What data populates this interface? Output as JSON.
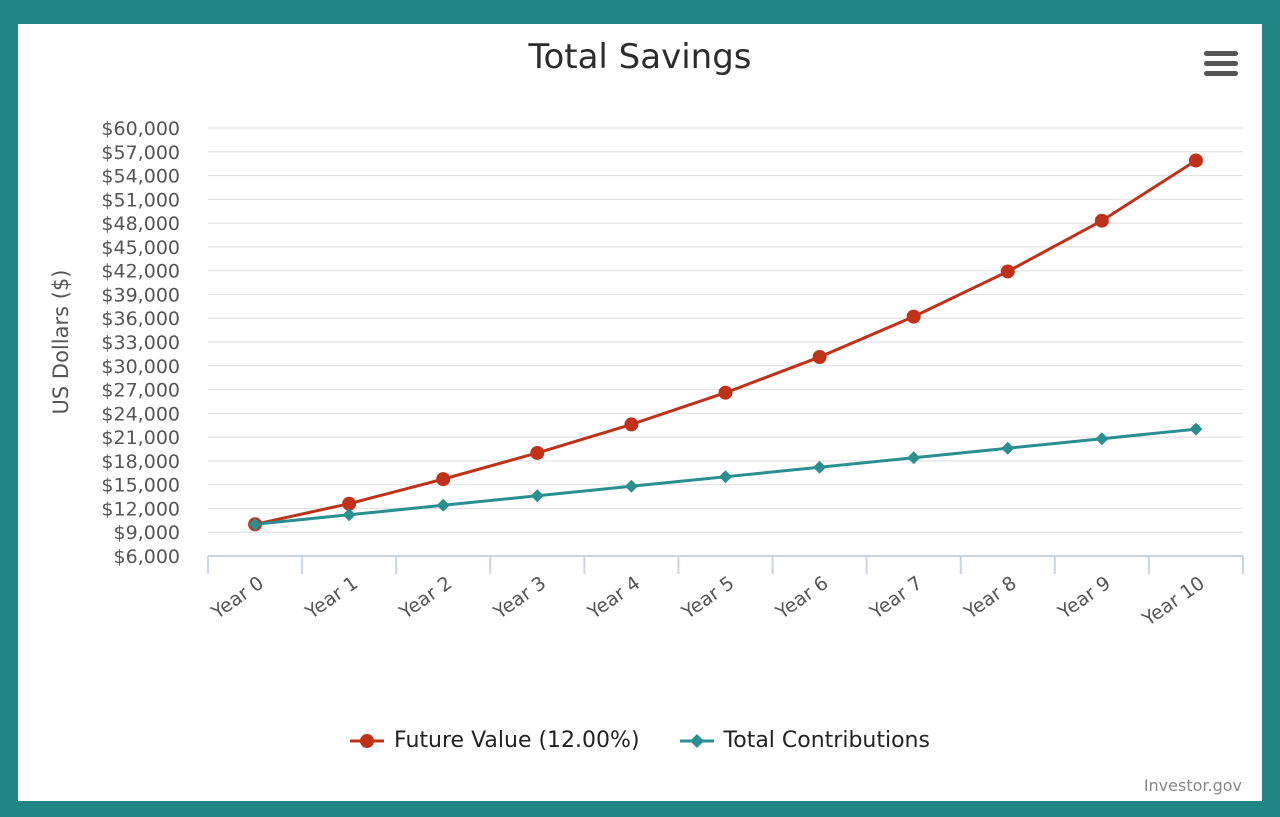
{
  "chart_data": {
    "type": "line",
    "title": "Total Savings",
    "ylabel": "US Dollars ($)",
    "xlabel": "",
    "categories": [
      "Year 0",
      "Year 1",
      "Year 2",
      "Year 3",
      "Year 4",
      "Year 5",
      "Year 6",
      "Year 7",
      "Year 8",
      "Year 9",
      "Year 10"
    ],
    "ylim": [
      6000,
      60000
    ],
    "yticks": [
      "$60,000",
      "$57,000",
      "$54,000",
      "$51,000",
      "$48,000",
      "$45,000",
      "$42,000",
      "$39,000",
      "$36,000",
      "$33,000",
      "$30,000",
      "$27,000",
      "$24,000",
      "$21,000",
      "$18,000",
      "$15,000",
      "$12,000",
      "$9,000",
      "$6,000"
    ],
    "ytick_values": [
      60000,
      57000,
      54000,
      51000,
      48000,
      45000,
      42000,
      39000,
      36000,
      33000,
      30000,
      27000,
      24000,
      21000,
      18000,
      15000,
      12000,
      9000,
      6000
    ],
    "grid": true,
    "legend_position": "bottom",
    "series": [
      {
        "name": "Future Value (12.00%)",
        "marker": "circle",
        "color": "#c0311a",
        "values": [
          10000,
          12600,
          15700,
          19000,
          22600,
          26600,
          31100,
          36200,
          41900,
          48300,
          55900
        ]
      },
      {
        "name": "Total Contributions",
        "marker": "diamond",
        "color": "#2a8f8f",
        "values": [
          10000,
          11200,
          12400,
          13600,
          14800,
          16000,
          17200,
          18400,
          19600,
          20800,
          22000
        ]
      }
    ]
  },
  "credits": "Investor.gov"
}
